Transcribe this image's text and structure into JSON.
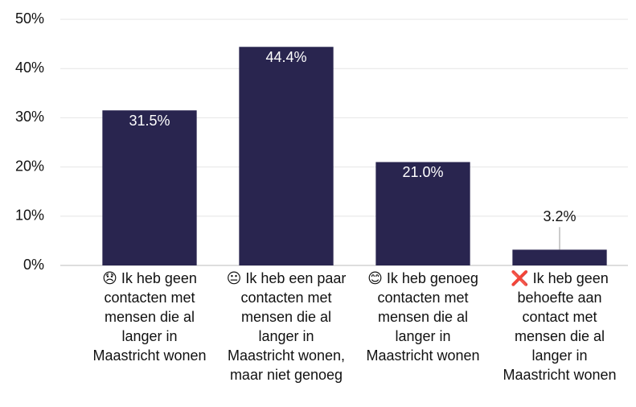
{
  "chart_data": {
    "type": "bar",
    "categories": [
      "😞 Ik heb geen contacten met mensen die al langer in Maastricht wonen",
      "😐 Ik heb een paar contacten met mensen die al langer in Maastricht wonen, maar niet genoeg",
      "😊 Ik heb genoeg contacten met mensen die al langer in Maastricht wonen",
      "❌ Ik heb geen behoefte aan contact met mensen die al langer in Maastricht wonen"
    ],
    "values": [
      31.5,
      44.4,
      21.0,
      3.2
    ],
    "value_labels": [
      "31.5%",
      "44.4%",
      "21.0%",
      "3.2%"
    ],
    "color": "#29254f",
    "ylim": [
      0,
      50
    ],
    "yticks": [
      {
        "value": 0,
        "label": "0%"
      },
      {
        "value": 10,
        "label": "10%"
      },
      {
        "value": 20,
        "label": "20%"
      },
      {
        "value": 30,
        "label": "30%"
      },
      {
        "value": 40,
        "label": "40%"
      },
      {
        "value": 50,
        "label": "50%"
      }
    ],
    "grid": true
  }
}
